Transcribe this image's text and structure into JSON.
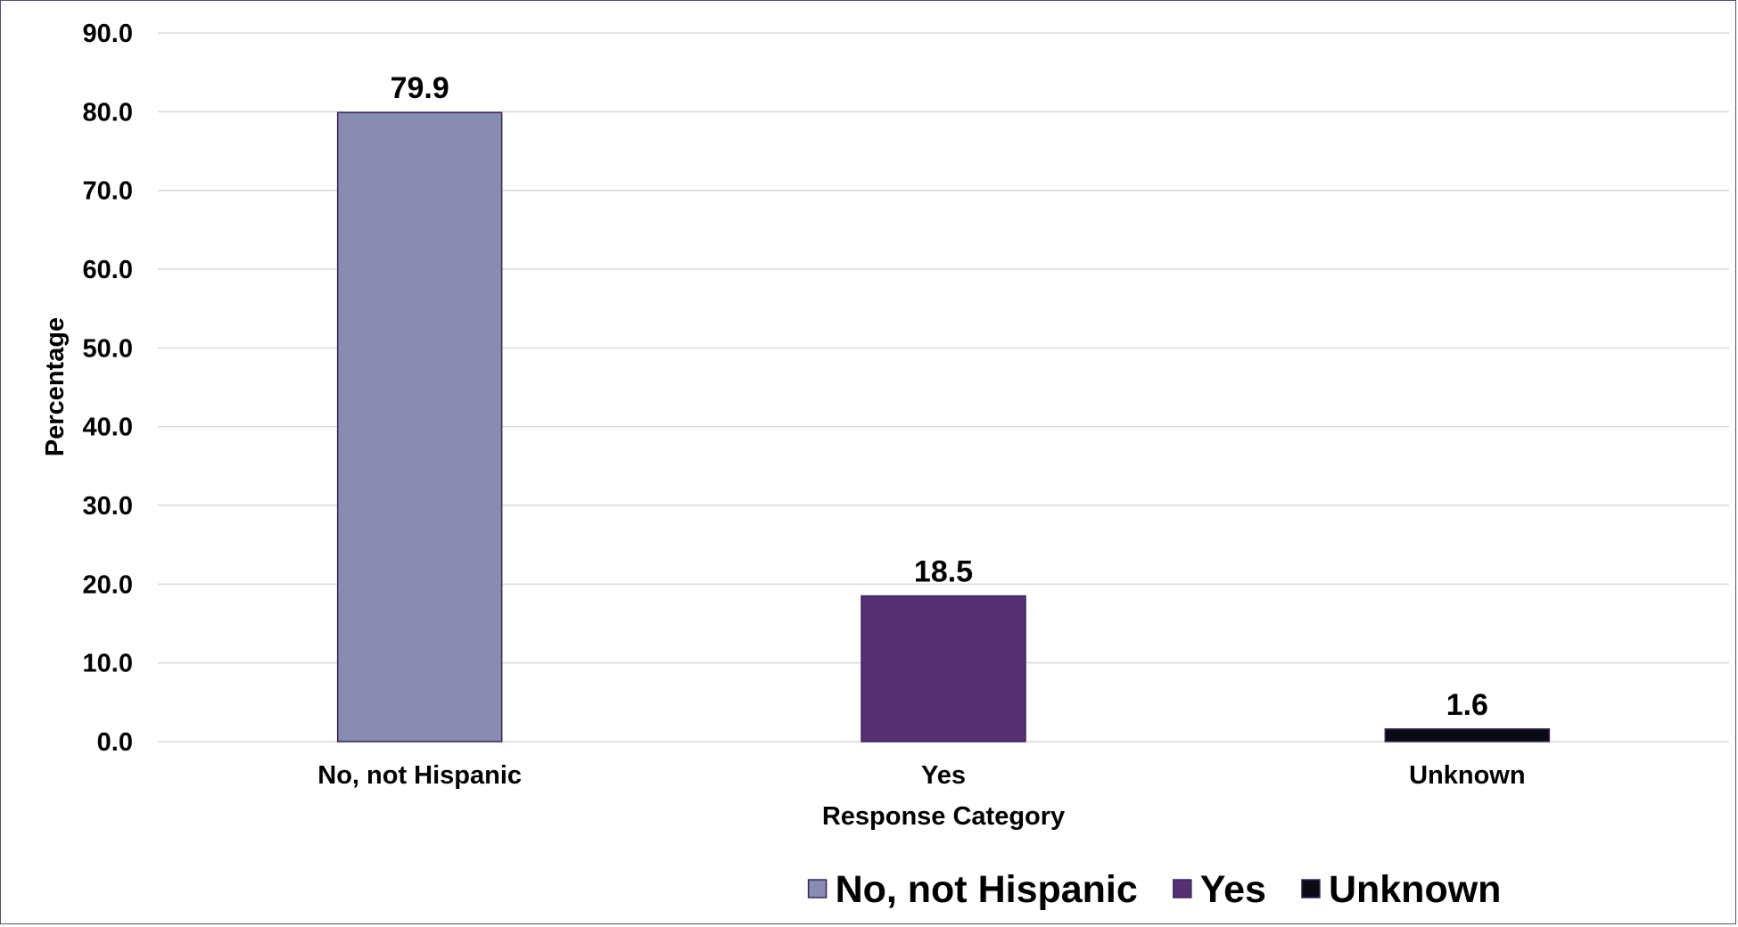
{
  "chart_data": {
    "type": "bar",
    "categories": [
      "No, not Hispanic",
      "Yes",
      "Unknown"
    ],
    "values": [
      79.9,
      18.5,
      1.6
    ],
    "value_labels": [
      "79.9",
      "18.5",
      "1.6"
    ],
    "colors": [
      "#888bb2",
      "#553174",
      "#0a0a14"
    ],
    "xlabel": "Response Category",
    "ylabel": "Percentage",
    "ylim": [
      0,
      90
    ],
    "yticks": [
      0,
      10,
      20,
      30,
      40,
      50,
      60,
      70,
      80,
      90
    ],
    "ytick_labels": [
      "0.0",
      "10.0",
      "20.0",
      "30.0",
      "40.0",
      "50.0",
      "60.0",
      "70.0",
      "80.0",
      "90.0"
    ],
    "grid": true,
    "legend": {
      "placement": "bottom",
      "entries": [
        "No, not Hispanic",
        "Yes",
        "Unknown"
      ]
    }
  }
}
